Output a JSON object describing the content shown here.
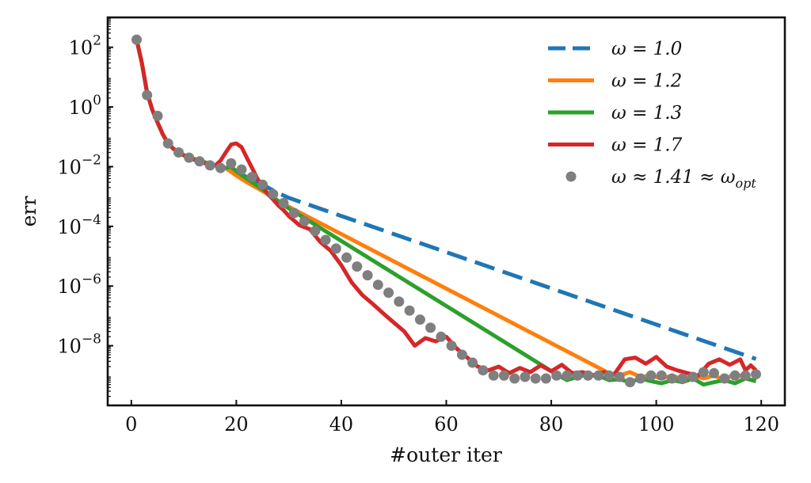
{
  "chart_data": {
    "type": "line",
    "xlabel": "#outer iter",
    "ylabel": "err",
    "xlim": [
      -4.5,
      124.5
    ],
    "y_scale": "log",
    "ylim": [
      1e-10,
      1000
    ],
    "x_ticks": [
      0,
      20,
      40,
      60,
      80,
      100,
      120
    ],
    "x_tick_labels": [
      "0",
      "20",
      "40",
      "60",
      "80",
      "100",
      "120"
    ],
    "y_ticks": [
      1e-08,
      1e-06,
      0.0001,
      0.01,
      1,
      100
    ],
    "y_tick_labels": [
      {
        "base": "10",
        "exp": "−8"
      },
      {
        "base": "10",
        "exp": "−6"
      },
      {
        "base": "10",
        "exp": "−4"
      },
      {
        "base": "10",
        "exp": "−2"
      },
      {
        "base": "10",
        "exp": "0"
      },
      {
        "base": "10",
        "exp": "2"
      }
    ],
    "legend_position": "top-right",
    "series": [
      {
        "name": "ω = 1.0",
        "color": "#1f77b4",
        "style": "dashed",
        "x": [
          1,
          2,
          3,
          4,
          5,
          6,
          7,
          8,
          9,
          10,
          12,
          14,
          16,
          18,
          20,
          22,
          24,
          26,
          28,
          30,
          119
        ],
        "y": [
          180,
          30,
          3,
          0.8,
          0.3,
          0.12,
          0.06,
          0.04,
          0.03,
          0.024,
          0.018,
          0.014,
          0.011,
          0.009,
          0.0065,
          0.0045,
          0.003,
          0.002,
          0.0013,
          0.0009,
          3.6e-09
        ]
      },
      {
        "name": "ω = 1.2",
        "color": "#ff7f0e",
        "style": "solid",
        "x": [
          1,
          2,
          3,
          4,
          5,
          6,
          7,
          8,
          9,
          10,
          12,
          14,
          16,
          18,
          20,
          22,
          24,
          26,
          28,
          30,
          91,
          93,
          95,
          97,
          99,
          101,
          103,
          105,
          107,
          109,
          111,
          113,
          115,
          117,
          119
        ],
        "y": [
          180,
          30,
          3,
          0.8,
          0.3,
          0.12,
          0.06,
          0.04,
          0.03,
          0.024,
          0.018,
          0.014,
          0.011,
          0.009,
          0.005,
          0.003,
          0.0019,
          0.0012,
          0.0007,
          0.00045,
          1.2e-09,
          1e-09,
          1.3e-09,
          9e-10,
          1e-09,
          8e-10,
          1e-09,
          7.5e-10,
          1e-09,
          8e-10,
          1e-09,
          7e-10,
          1.2e-09,
          8e-10,
          6.5e-10
        ]
      },
      {
        "name": "ω = 1.3",
        "color": "#2ca02c",
        "style": "solid",
        "x": [
          1,
          2,
          3,
          4,
          5,
          6,
          7,
          8,
          9,
          10,
          12,
          14,
          16,
          18,
          19,
          20,
          22,
          24,
          26,
          28,
          30,
          81,
          83,
          85,
          87,
          89,
          91,
          93,
          95,
          97,
          99,
          101,
          103,
          105,
          107,
          109,
          111,
          113,
          115,
          117,
          119
        ],
        "y": [
          180,
          30,
          3,
          0.8,
          0.3,
          0.12,
          0.06,
          0.04,
          0.03,
          0.024,
          0.018,
          0.014,
          0.011,
          0.009,
          0.01,
          0.007,
          0.004,
          0.0023,
          0.0013,
          0.0007,
          0.0004,
          1.1e-09,
          7e-10,
          9e-10,
          1.1e-09,
          1e-09,
          7e-10,
          7.5e-10,
          6e-10,
          8e-10,
          6.5e-10,
          5.5e-10,
          7e-10,
          6e-10,
          8e-10,
          5e-10,
          6e-10,
          7e-10,
          5.5e-10,
          8e-10,
          6.5e-10
        ]
      },
      {
        "name": "ω = 1.7",
        "color": "#d62728",
        "style": "solid",
        "x": [
          1,
          2,
          3,
          4,
          5,
          6,
          7,
          8,
          9,
          10,
          11,
          12,
          13,
          14,
          15,
          16,
          17,
          18,
          19,
          20,
          21,
          22,
          23,
          24,
          25,
          26,
          27,
          28,
          29,
          30,
          32,
          34,
          36,
          38,
          40,
          42,
          44,
          46,
          48,
          50,
          52,
          54,
          56,
          58,
          60,
          62,
          64,
          66,
          68,
          70,
          72,
          74,
          76,
          78,
          80,
          82,
          84,
          86,
          88,
          90,
          92,
          94,
          96,
          98,
          100,
          102,
          104,
          106,
          108,
          110,
          112,
          114,
          116,
          117,
          118,
          119
        ],
        "y": [
          180,
          30,
          3,
          0.8,
          0.3,
          0.12,
          0.06,
          0.04,
          0.03,
          0.024,
          0.02,
          0.017,
          0.015,
          0.013,
          0.011,
          0.011,
          0.016,
          0.03,
          0.055,
          0.06,
          0.045,
          0.02,
          0.009,
          0.004,
          0.0022,
          0.0012,
          0.0008,
          0.0005,
          0.00035,
          0.00022,
          0.00011,
          8e-05,
          3e-05,
          1.5e-05,
          5e-06,
          1.3e-06,
          5e-07,
          2.5e-07,
          1.2e-07,
          6e-08,
          3e-08,
          1e-08,
          1.8e-08,
          1.4e-08,
          2e-08,
          8e-09,
          4e-09,
          2e-09,
          1.5e-09,
          2e-09,
          1.2e-09,
          1.8e-09,
          1.3e-09,
          2.2e-09,
          1.4e-09,
          2.3e-09,
          1.2e-09,
          1.3e-09,
          1e-09,
          1.3e-09,
          1.1e-09,
          3.5e-09,
          4e-09,
          2.5e-09,
          4.2e-09,
          2e-09,
          1.5e-09,
          1.2e-09,
          1e-09,
          2.5e-09,
          3.5e-09,
          2.3e-09,
          3.5e-09,
          1.5e-09,
          2.2e-09,
          1.5e-09
        ]
      },
      {
        "name_base": "ω ≈ 1.41 ≈ ω",
        "name_sub": "opt",
        "color": "#7f7f7f",
        "style": "markers",
        "x": [
          1,
          3,
          5,
          7,
          9,
          11,
          13,
          15,
          17,
          19,
          21,
          23,
          25,
          27,
          29,
          31,
          33,
          35,
          37,
          39,
          41,
          43,
          45,
          47,
          49,
          51,
          53,
          55,
          57,
          59,
          61,
          63,
          65,
          67,
          69,
          71,
          73,
          75,
          77,
          79,
          81,
          83,
          85,
          87,
          89,
          91,
          93,
          95,
          97,
          99,
          101,
          103,
          105,
          107,
          109,
          111,
          113,
          115,
          117,
          119
        ],
        "y": [
          180,
          2.5,
          0.5,
          0.06,
          0.03,
          0.02,
          0.015,
          0.011,
          0.009,
          0.013,
          0.008,
          0.0045,
          0.0025,
          0.0012,
          0.0006,
          0.00028,
          0.00015,
          7e-05,
          3.5e-05,
          1.8e-05,
          9e-06,
          4.5e-06,
          2.3e-06,
          1.1e-06,
          6e-07,
          3e-07,
          1.5e-07,
          7.5e-08,
          4e-08,
          2e-08,
          1e-08,
          5e-09,
          2.7e-09,
          1.5e-09,
          1e-09,
          1e-09,
          8e-10,
          9e-10,
          8e-10,
          8e-10,
          1e-09,
          1e-09,
          1e-09,
          1e-09,
          1e-09,
          1e-09,
          9e-10,
          6e-10,
          8e-10,
          1e-09,
          1e-09,
          8e-10,
          8e-10,
          9e-10,
          1.3e-09,
          1.2e-09,
          8e-10,
          1e-09,
          1e-09,
          1.1e-09
        ]
      }
    ]
  }
}
